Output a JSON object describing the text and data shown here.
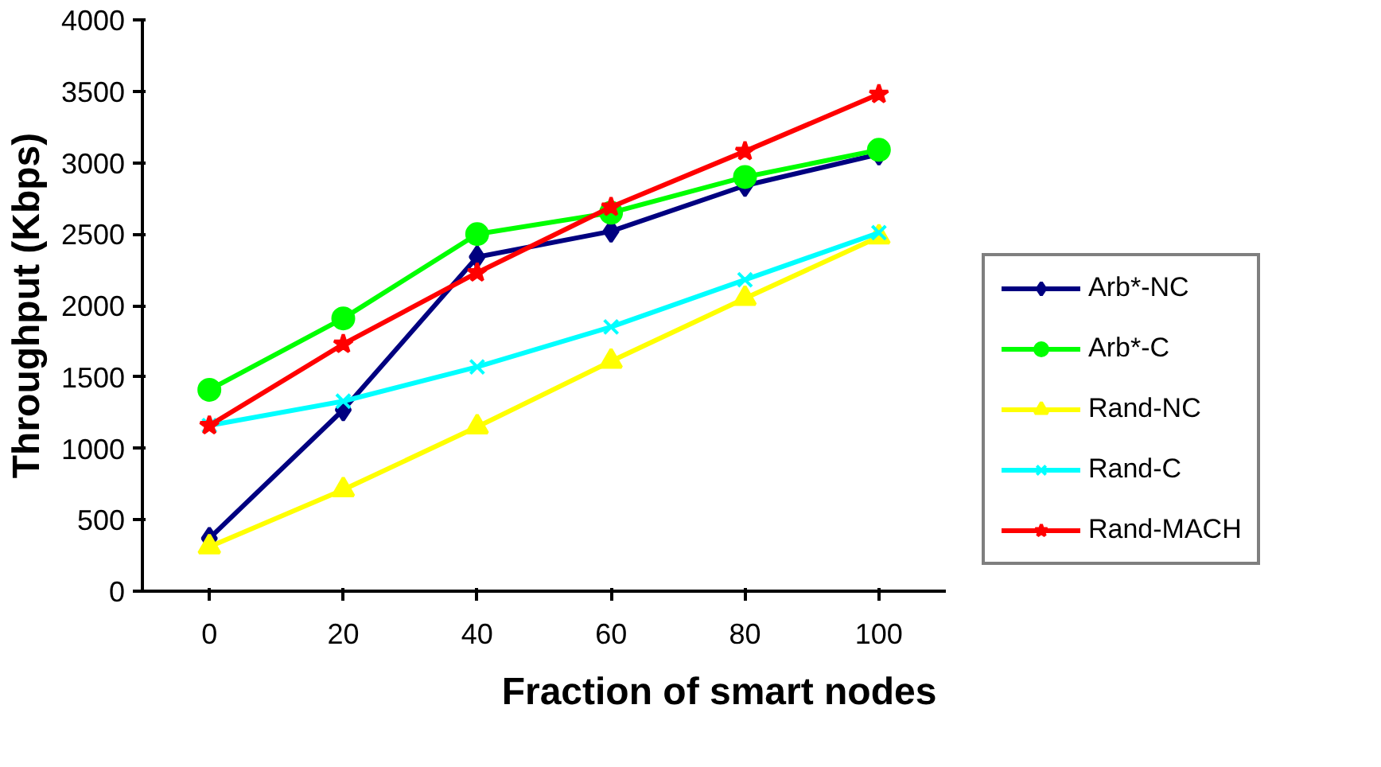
{
  "chart_data": {
    "type": "line",
    "xlabel": "Fraction of smart nodes",
    "ylabel": "Throughput (Kbps)",
    "categories": [
      "0",
      "20",
      "40",
      "60",
      "80",
      "100"
    ],
    "ylim": [
      0,
      4000
    ],
    "yticks": [
      0,
      500,
      1000,
      1500,
      2000,
      2500,
      3000,
      3500,
      4000
    ],
    "grid": false,
    "legend": "right",
    "series": [
      {
        "name": "Arb*-NC",
        "color": "#000080",
        "marker": "diamond",
        "values": [
          370,
          1270,
          2340,
          2520,
          2840,
          3060
        ]
      },
      {
        "name": "Arb*-C",
        "color": "#00ff00",
        "marker": "circle",
        "values": [
          1410,
          1910,
          2500,
          2650,
          2900,
          3090
        ]
      },
      {
        "name": "Rand-NC",
        "color": "#ffff00",
        "marker": "triangle",
        "values": [
          310,
          710,
          1150,
          1610,
          2050,
          2480
        ]
      },
      {
        "name": "Rand-C",
        "color": "#00ffff",
        "marker": "cross",
        "values": [
          1160,
          1330,
          1570,
          1850,
          2180,
          2510
        ]
      },
      {
        "name": "Rand-MACH",
        "color": "#ff0000",
        "marker": "star",
        "values": [
          1160,
          1730,
          2230,
          2690,
          3080,
          3480
        ]
      }
    ]
  }
}
